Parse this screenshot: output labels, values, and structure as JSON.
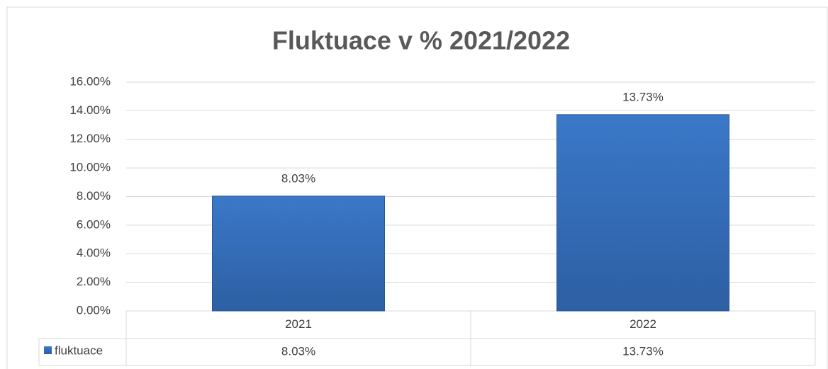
{
  "chart_data": {
    "type": "bar",
    "title": "Fluktuace v % 2021/2022",
    "categories": [
      "2021",
      "2022"
    ],
    "series": [
      {
        "name": "fluktuace",
        "color": "#3a78c8",
        "values": [
          8.03,
          13.73
        ],
        "value_labels": [
          "8.03%",
          "13.73%"
        ]
      }
    ],
    "ylim": [
      0,
      16
    ],
    "yticks": [
      {
        "value": 0,
        "label": "0.00%"
      },
      {
        "value": 2,
        "label": "2.00%"
      },
      {
        "value": 4,
        "label": "4.00%"
      },
      {
        "value": 6,
        "label": "6.00%"
      },
      {
        "value": 8,
        "label": "8.00%"
      },
      {
        "value": 10,
        "label": "10.00%"
      },
      {
        "value": 12,
        "label": "12.00%"
      },
      {
        "value": 14,
        "label": "14.00%"
      },
      {
        "value": 16,
        "label": "16.00%"
      }
    ],
    "grid": true
  }
}
